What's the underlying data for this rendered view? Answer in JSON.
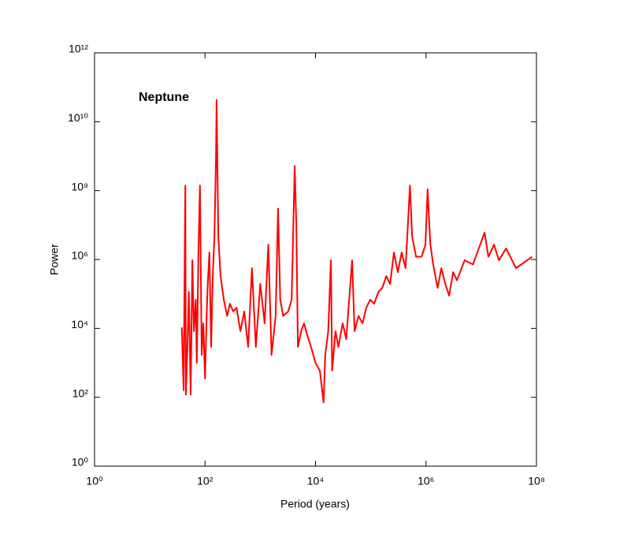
{
  "chart_data": {
    "type": "line",
    "annotation": "Neptune",
    "xlabel": "Period (years)",
    "ylabel": "Power",
    "xscale": "log",
    "yscale": "log",
    "xlim": [
      1,
      100000000
    ],
    "ylim": [
      1,
      1000000000000
    ],
    "xticks": [
      {
        "value": 1,
        "label": "10⁰"
      },
      {
        "value": 100,
        "label": "10²"
      },
      {
        "value": 10000,
        "label": "10⁴"
      },
      {
        "value": 1000000,
        "label": "10⁶"
      },
      {
        "value": 100000000,
        "label": "10⁸"
      }
    ],
    "yticks": [
      {
        "value": 1,
        "label": "10⁰"
      },
      {
        "value": 100,
        "label": "10²"
      },
      {
        "value": 10000,
        "label": "10⁴"
      },
      {
        "value": 1000000,
        "label": "10⁶"
      },
      {
        "value": 100000000,
        "label": "10⁸"
      },
      {
        "value": 10000000000,
        "label": "10¹⁰"
      },
      {
        "value": 1000000000000,
        "label": "10¹²"
      }
    ],
    "x": [
      38,
      41,
      44,
      45,
      48,
      51,
      55,
      59,
      63,
      68,
      71,
      76,
      81,
      87,
      93,
      100,
      107,
      112,
      120,
      129,
      138,
      148,
      158,
      162,
      174,
      191,
      219,
      251,
      282,
      324,
      372,
      437,
      513,
      603,
      708,
      832,
      1000,
      1200,
      1400,
      1600,
      1900,
      2100,
      2300,
      2600,
      3200,
      3700,
      4200,
      4500,
      4800,
      5500,
      6200,
      7100,
      8300,
      10000,
      12000,
      14000,
      15000,
      17000,
      19000,
      20000,
      23000,
      26000,
      31000,
      36000,
      46000,
      51000,
      60000,
      71000,
      83000,
      98000,
      115000,
      138000,
      162000,
      191000,
      224000,
      263000,
      309000,
      363000,
      427000,
      513000,
      562000,
      661000,
      832000,
      977000,
      1070000,
      1200000,
      1350000,
      1620000,
      1900000,
      2240000,
      2630000,
      3090000,
      3630000,
      5010000,
      7080000,
      8510000,
      11500000,
      13500000,
      17000000,
      20900000,
      28200000,
      42700000,
      83200000
    ],
    "series": [
      {
        "color": "#ff0000",
        "values": [
          10700,
          160,
          140000000,
          120,
          2900,
          115000,
          120,
          950000,
          8300,
          68000,
          1000,
          1600000,
          140000000,
          1700,
          14000,
          350,
          23000,
          195000,
          1600000,
          2900,
          330000,
          4600000,
          890000000,
          43000000000,
          4600000,
          330000,
          68000,
          23000,
          52000,
          31000,
          40000,
          8300,
          31000,
          2900,
          560000,
          2900,
          195000,
          14000,
          2700000,
          1700,
          23000,
          30000000,
          68000,
          23000,
          31000,
          68000,
          520000000,
          10000000,
          2900,
          8300,
          14000,
          6300,
          2900,
          1000,
          590,
          71,
          1700,
          8300,
          950000,
          590,
          8300,
          2900,
          14000,
          4900,
          950000,
          8300,
          23000,
          14000,
          40000,
          68000,
          52000,
          115000,
          150000,
          330000,
          195000,
          1600000,
          430000,
          1600000,
          560000,
          140000000,
          4600000,
          1200000,
          1200000,
          2700000,
          110000000,
          2700000,
          720000,
          150000,
          560000,
          195000,
          89000,
          430000,
          250000,
          950000,
          720000,
          1600000,
          6000000,
          1200000,
          2700000,
          950000,
          2100000,
          560000,
          1200000
        ]
      }
    ]
  }
}
